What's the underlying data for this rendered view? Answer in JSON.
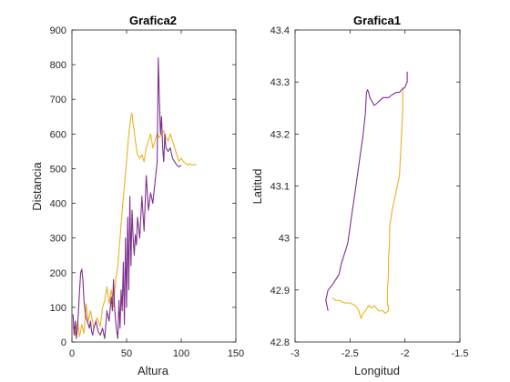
{
  "chart_data": [
    {
      "type": "line",
      "title": "Grafica2",
      "xlabel": "Altura",
      "ylabel": "Distancia",
      "xlim": [
        0,
        150
      ],
      "ylim": [
        0,
        900
      ],
      "xticks": [
        "0",
        "50",
        "100",
        "150"
      ],
      "yticks": [
        "0",
        "100",
        "200",
        "300",
        "400",
        "500",
        "600",
        "700",
        "800",
        "900"
      ],
      "grid": false,
      "series": [
        {
          "color": "#EDB120",
          "x": [
            1,
            3,
            5,
            7,
            9,
            11,
            13,
            15,
            17,
            20,
            23,
            26,
            28,
            30,
            32,
            34,
            36,
            38,
            40,
            42,
            44,
            46,
            48,
            50,
            52,
            54,
            55,
            56,
            57,
            58,
            59,
            60,
            62,
            64,
            66,
            68,
            70,
            72,
            74,
            76,
            78,
            80,
            82,
            84,
            86,
            88,
            90,
            92,
            94,
            96,
            98,
            100,
            102,
            104,
            106,
            108,
            110,
            112,
            114
          ],
          "y": [
            45,
            20,
            60,
            15,
            50,
            25,
            110,
            60,
            90,
            40,
            70,
            45,
            100,
            120,
            160,
            110,
            150,
            100,
            180,
            220,
            300,
            380,
            450,
            520,
            600,
            650,
            660,
            630,
            610,
            580,
            560,
            540,
            530,
            540,
            520,
            560,
            580,
            600,
            560,
            580,
            600,
            590,
            600,
            610,
            590,
            580,
            600,
            580,
            560,
            540,
            520,
            530,
            520,
            515,
            510,
            515,
            510,
            512,
            510
          ]
        },
        {
          "color": "#7E2F8E",
          "x": [
            1,
            2,
            3,
            4,
            5,
            6,
            7,
            8,
            9,
            10,
            11,
            12,
            13,
            14,
            15,
            16,
            17,
            18,
            19,
            20,
            22,
            24,
            26,
            28,
            30,
            32,
            34,
            36,
            37,
            38,
            39,
            40,
            41,
            42,
            43,
            44,
            45,
            46,
            47,
            48,
            49,
            50,
            51,
            52,
            53,
            54,
            55,
            56,
            57,
            58,
            59,
            60,
            62,
            64,
            66,
            68,
            70,
            72,
            74,
            76,
            78,
            79,
            80,
            81,
            82,
            83,
            84,
            85,
            86,
            88,
            90,
            92,
            94,
            96,
            98,
            100
          ],
          "y": [
            80,
            20,
            60,
            10,
            40,
            90,
            150,
            200,
            210,
            180,
            120,
            90,
            70,
            60,
            50,
            40,
            60,
            30,
            20,
            40,
            60,
            30,
            20,
            40,
            10,
            90,
            60,
            130,
            90,
            180,
            100,
            60,
            30,
            10,
            120,
            40,
            150,
            90,
            230,
            50,
            300,
            100,
            360,
            150,
            420,
            220,
            380,
            300,
            250,
            310,
            280,
            360,
            300,
            420,
            320,
            480,
            380,
            430,
            400,
            460,
            520,
            820,
            700,
            600,
            650,
            560,
            520,
            600,
            560,
            550,
            560,
            530,
            520,
            510,
            505,
            510
          ]
        }
      ]
    },
    {
      "type": "line",
      "title": "Grafica1",
      "xlabel": "Longitud",
      "ylabel": "Latitud",
      "xlim": [
        -3,
        -1.5
      ],
      "ylim": [
        42.8,
        43.4
      ],
      "xticks": [
        "-3",
        "-2.5",
        "-2",
        "-1.5"
      ],
      "yticks": [
        "42.8",
        "42.9",
        "43",
        "43.1",
        "43.2",
        "43.3",
        "43.4"
      ],
      "grid": false,
      "series": [
        {
          "color": "#EDB120",
          "x": [
            -2.02,
            -2.02,
            -2.03,
            -2.04,
            -2.05,
            -2.08,
            -2.1,
            -2.12,
            -2.14,
            -2.14,
            -2.15,
            -2.15,
            -2.16,
            -2.16,
            -2.16,
            -2.15,
            -2.15,
            -2.18,
            -2.2,
            -2.24,
            -2.28,
            -2.3,
            -2.33,
            -2.36,
            -2.38,
            -2.4,
            -2.42,
            -2.45,
            -2.5,
            -2.55,
            -2.6,
            -2.63,
            -2.66
          ],
          "y": [
            43.29,
            43.25,
            43.2,
            43.16,
            43.12,
            43.09,
            43.07,
            43.05,
            43.02,
            42.99,
            42.96,
            42.93,
            42.9,
            42.88,
            42.87,
            42.87,
            42.86,
            42.855,
            42.86,
            42.86,
            42.87,
            42.865,
            42.87,
            42.86,
            42.855,
            42.845,
            42.86,
            42.87,
            42.875,
            42.875,
            42.88,
            42.88,
            42.885
          ]
        },
        {
          "color": "#7E2F8E",
          "x": [
            -1.98,
            -1.98,
            -2,
            -2.03,
            -2.05,
            -2.08,
            -2.12,
            -2.15,
            -2.2,
            -2.25,
            -2.28,
            -2.32,
            -2.33,
            -2.34,
            -2.35,
            -2.36,
            -2.38,
            -2.4,
            -2.42,
            -2.44,
            -2.46,
            -2.48,
            -2.5,
            -2.52,
            -2.55,
            -2.58,
            -2.6,
            -2.63,
            -2.66,
            -2.68,
            -2.7,
            -2.72,
            -2.7
          ],
          "y": [
            43.32,
            43.3,
            43.29,
            43.285,
            43.28,
            43.28,
            43.275,
            43.27,
            43.27,
            43.26,
            43.255,
            43.27,
            43.28,
            43.285,
            43.28,
            43.24,
            43.2,
            43.17,
            43.14,
            43.11,
            43.08,
            43.05,
            43.02,
            42.99,
            42.97,
            42.95,
            42.93,
            42.92,
            42.91,
            42.905,
            42.9,
            42.88,
            42.86
          ]
        }
      ]
    }
  ]
}
